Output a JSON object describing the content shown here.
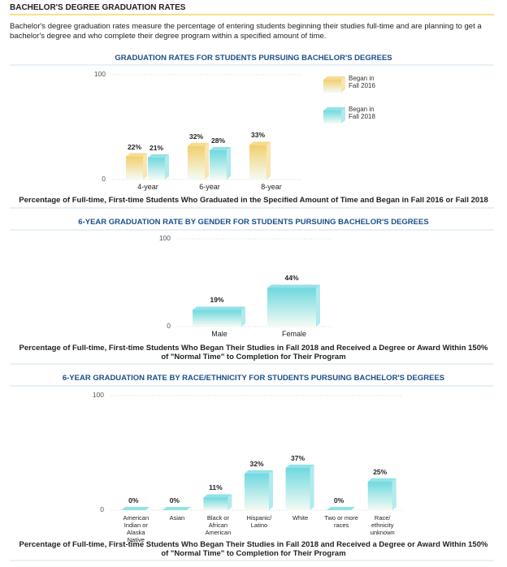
{
  "header": {
    "title": "BACHELOR'S DEGREE GRADUATION RATES",
    "description": "Bachelor's degree graduation rates measure the percentage of entering students beginning their studies full-time and are planning to get a bachelor's degree and who complete their degree program within a specified amount of time."
  },
  "chart_data": [
    {
      "type": "bar",
      "title": "GRADUATION RATES FOR STUDENTS PURSUING BACHELOR'S DEGREES",
      "categories": [
        "4-year",
        "6-year",
        "8-year"
      ],
      "series": [
        {
          "name": "Began in Fall 2016",
          "color": "#f2cf6e",
          "values": [
            22,
            32,
            33
          ],
          "value_labels": [
            "22%",
            "32%",
            "33%"
          ]
        },
        {
          "name": "Began in Fall 2018",
          "color": "#6fd8df",
          "values": [
            21,
            28,
            null
          ],
          "value_labels": [
            "21%",
            "28%",
            null
          ]
        }
      ],
      "ylim": [
        0,
        100
      ],
      "yticks": [
        0,
        100
      ],
      "caption": "Percentage of Full-time, First-time Students Who Graduated in the Specified Amount of Time and Began in Fall 2016 or Fall 2018"
    },
    {
      "type": "bar",
      "title": "6-YEAR GRADUATION RATE BY GENDER FOR STUDENTS PURSUING BACHELOR'S DEGREES",
      "categories": [
        "Male",
        "Female"
      ],
      "values": [
        19,
        44
      ],
      "value_labels": [
        "19%",
        "44%"
      ],
      "color": "#6fd8df",
      "ylim": [
        0,
        100
      ],
      "yticks": [
        0,
        100
      ],
      "caption": "Percentage of Full-time, First-time Students Who Began Their Studies in Fall 2018 and Received a Degree or Award Within 150% of \"Normal Time\" to Completion for Their Program"
    },
    {
      "type": "bar",
      "title": "6-YEAR GRADUATION RATE BY RACE/ETHNICITY FOR STUDENTS PURSUING BACHELOR'S DEGREES",
      "categories": [
        "American Indian or Alaska Native",
        "Asian",
        "Black or African American",
        "Hispanic/ Latino",
        "White",
        "Two or more races",
        "Race/ ethnicity unknown"
      ],
      "values": [
        0,
        0,
        11,
        32,
        37,
        0,
        25
      ],
      "value_labels": [
        "0%",
        "0%",
        "11%",
        "32%",
        "37%",
        "0%",
        "25%"
      ],
      "color": "#6fd8df",
      "ylim": [
        0,
        100
      ],
      "yticks": [
        0,
        100
      ],
      "caption": "Percentage of Full-time, First-time Students Who Began Their Studies in Fall 2018 and Received a Degree or Award Within 150% of \"Normal Time\" to Completion for Their Program"
    }
  ]
}
